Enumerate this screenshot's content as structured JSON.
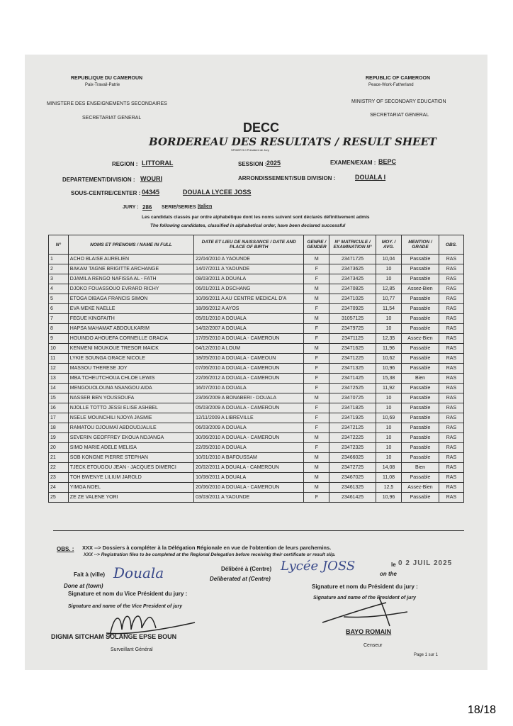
{
  "header": {
    "left": [
      "REPUBLIQUE DU CAMEROUN",
      "Paix-Travail-Patrie",
      "MINISTERE DES ENSEIGNEMENTS SECONDAIRES",
      "SECRETARIAT GENERAL"
    ],
    "right": [
      "REPUBLIC OF CAMEROON",
      "Peace-Work-Fatherland",
      "MINISTRY OF SECONDARY EDUCATION",
      "SECRETARIAT GENERAL"
    ],
    "org": "DECC",
    "title": "BORDEREAU DES RESULTATS / RESULT SHEET",
    "software": "SPIDER 9.0   Président de Jury"
  },
  "fields": {
    "region_label": "REGION :",
    "region": "LITTORAL",
    "session_label": "SESSION :",
    "session": "2025",
    "exam_label": "EXAMEN/EXAM :",
    "exam": "BEPC",
    "division_label": "DEPARTEMENT/DIVISION :",
    "division": "WOURI",
    "subdivision_label": "ARRONDISSEMENT/SUB DIVISION :",
    "subdivision": "DOUALA I",
    "center_label": "SOUS-CENTRE/CENTER :",
    "center_code": "04345",
    "center_name": "DOUALA LYCEE JOSS",
    "jury_label": "JURY :",
    "jury": "286",
    "series_label": "SERIE/SERIES :",
    "series": "Italien"
  },
  "intro": [
    "Les candidats classés par ordre alphabétique dont les noms suivent sont déclarés définitivement admis",
    "The following candidates, classified in alphabetical order, have been declared successful"
  ],
  "table": {
    "columns": [
      "N°",
      "NOMS ET PRENOMS / NAME IN FULL",
      "DATE ET LIEU DE NAISSANCE / DATE AND PLACE OF BIRTH",
      "GENRE / GENDER",
      "N° MATRICULE / EXAMINATION N°",
      "MOY. / AVG.",
      "MENTION / GRADE",
      "OBS."
    ],
    "rows": [
      [
        "1",
        "ACHO BLAISE AURELIEN",
        "22/04/2010 A YAOUNDE",
        "M",
        "23471725",
        "10,04",
        "Passable",
        "RAS"
      ],
      [
        "2",
        "BAKAM TAGNE BRIGITTE ARCHANGE",
        "14/07/2011 A YAOUNDE",
        "F",
        "23473625",
        "10",
        "Passable",
        "RAS"
      ],
      [
        "3",
        "DJAMILA RENGO NAFISSA AL - FATH",
        "08/03/2011 A DOUALA",
        "F",
        "23473425",
        "10",
        "Passable",
        "RAS"
      ],
      [
        "4",
        "DJOKO FOUASSOUO EVRARD RICHY",
        "06/01/2011 A DSCHANG",
        "M",
        "23470825",
        "12,85",
        "Assez-Bien",
        "RAS"
      ],
      [
        "5",
        "ETOGA DIBAGA FRANCIS SIMON",
        "10/06/2011 A AU CENTRE MEDICAL D'A",
        "M",
        "23471025",
        "10,77",
        "Passable",
        "RAS"
      ],
      [
        "6",
        "EVA MEKE NAELLE",
        "18/06/2012 A AYOS",
        "F",
        "23470925",
        "11,54",
        "Passable",
        "RAS"
      ],
      [
        "7",
        "FEGUE KINGFAITH",
        "05/01/2010 A DOUALA",
        "M",
        "31057125",
        "10",
        "Passable",
        "RAS"
      ],
      [
        "8",
        "HAPSA MAHAMAT ABDOULKARIM",
        "14/02/2007 A DOUALA",
        "F",
        "23479725",
        "10",
        "Passable",
        "RAS"
      ],
      [
        "9",
        "HOUINDO AHOUEFA CORNEILLE GRACIA",
        "17/05/2010 A DOUALA - CAMEROUN",
        "F",
        "23471125",
        "12,35",
        "Assez-Bien",
        "RAS"
      ],
      [
        "10",
        "KENMENI MOUKOUE TRESOR MAICK",
        "04/12/2010 A LOUM",
        "M",
        "23471625",
        "11,96",
        "Passable",
        "RAS"
      ],
      [
        "11",
        "LYKIE SOUNGA GRACE NICOLE",
        "18/05/2010 A DOUALA - CAMEOUN",
        "F",
        "23471225",
        "10,62",
        "Passable",
        "RAS"
      ],
      [
        "12",
        "MASSOU THERESE JOY",
        "07/06/2010 A DOUALA - CAMEROUN",
        "F",
        "23471325",
        "10,96",
        "Passable",
        "RAS"
      ],
      [
        "13",
        "MBA TCHEUTCHOUA CHLOE LEWIS",
        "22/06/2012 A DOUALA - CAMEROUN",
        "F",
        "23471425",
        "15,38",
        "Bien",
        "RAS"
      ],
      [
        "14",
        "MENGOUOLOUNA NSANGOU AIDA",
        "16/07/2010 A DOUALA",
        "F",
        "23472525",
        "11,92",
        "Passable",
        "RAS"
      ],
      [
        "15",
        "NASSER BEN YOUSSOUFA",
        "23/06/2009 A BONABERI - DOUALA",
        "M",
        "23470725",
        "10",
        "Passable",
        "RAS"
      ],
      [
        "16",
        "NJOLLE TOTTO JESSI ELISE ASHBEL",
        "05/03/2009 A DOUALA - CAMEROUN",
        "F",
        "23471825",
        "10",
        "Passable",
        "RAS"
      ],
      [
        "17",
        "NSELE MOUNCHILI NJOYA JASMIE",
        "12/11/2009 A LIBREVILLE",
        "F",
        "23471925",
        "10,69",
        "Passable",
        "RAS"
      ],
      [
        "18",
        "RAMATOU DJOUMAÏ ABDOUDJALILE",
        "06/03/2009 A DOUALA",
        "F",
        "23472125",
        "10",
        "Passable",
        "RAS"
      ],
      [
        "19",
        "SEVERIN GEOFFREY EKOUA NDJANGA",
        "30/06/2010 A DOUALA - CAMEROUN",
        "M",
        "23472225",
        "10",
        "Passable",
        "RAS"
      ],
      [
        "20",
        "SIMO MARIE ADELE MELISA",
        "22/05/2010 A DOUALA",
        "F",
        "23472325",
        "10",
        "Passable",
        "RAS"
      ],
      [
        "21",
        "SOB KONGNE PIERRE STEPHAN",
        "10/01/2010 A BAFOUSSAM",
        "M",
        "23466025",
        "10",
        "Passable",
        "RAS"
      ],
      [
        "22",
        "TJECK ETOUGOU JEAN - JACQUES DIMERCI",
        "20/02/2011 A DOUALA - CAMEROUN",
        "M",
        "23472725",
        "14,08",
        "Bien",
        "RAS"
      ],
      [
        "23",
        "TOH BWENYE LILIUM JAROLD",
        "10/08/2011 A DOUALA",
        "M",
        "23467025",
        "11,08",
        "Passable",
        "RAS"
      ],
      [
        "24",
        "YIMGA NOEL",
        "20/06/2010 A DOUALA - CAMEROUN",
        "M",
        "23461325",
        "12,5",
        "Assez-Bien",
        "RAS"
      ],
      [
        "25",
        "ZE ZE VALENE YORI",
        "03/03/2011 A YAOUNDE",
        "F",
        "23461425",
        "10,96",
        "Passable",
        "RAS"
      ]
    ]
  },
  "footer": {
    "obs_label": "OBS. :",
    "obs_fr": "XXX --> Dossiers à compléter à la Délégation Régionale en vue de l'obtention de leurs parchemins.",
    "obs_en": "XXX --> Registration files to be completed at the Regional Delegation before receiving their certificate or result slip.",
    "done_fr": "Fait à (ville)",
    "done_en": "Done at (town)",
    "town": "Douala",
    "delib_fr": "Délibéré à (Centre)",
    "delib_en": "Deliberated at (Centre)",
    "centre": "Lycée JOSS",
    "date_fr": "le",
    "date_en": "on the",
    "date": "0 2 JUIL 2025",
    "vp_fr": "Signature et nom du Vice Président du jury :",
    "vp_en": "Signature and name of the Vice President of jury",
    "vp_name": "DIGNIA SITCHAM SOLANGE EPSE BOUN",
    "vp_role": "Surveillant Général",
    "p_fr": "Signature et nom  du Président du jury :",
    "p_en": "Signature and name of the President of jury",
    "p_name": "BAYO ROMAIN",
    "p_role": "Censeur",
    "page": "Page 1 sur 1"
  },
  "page_number": "18/18"
}
